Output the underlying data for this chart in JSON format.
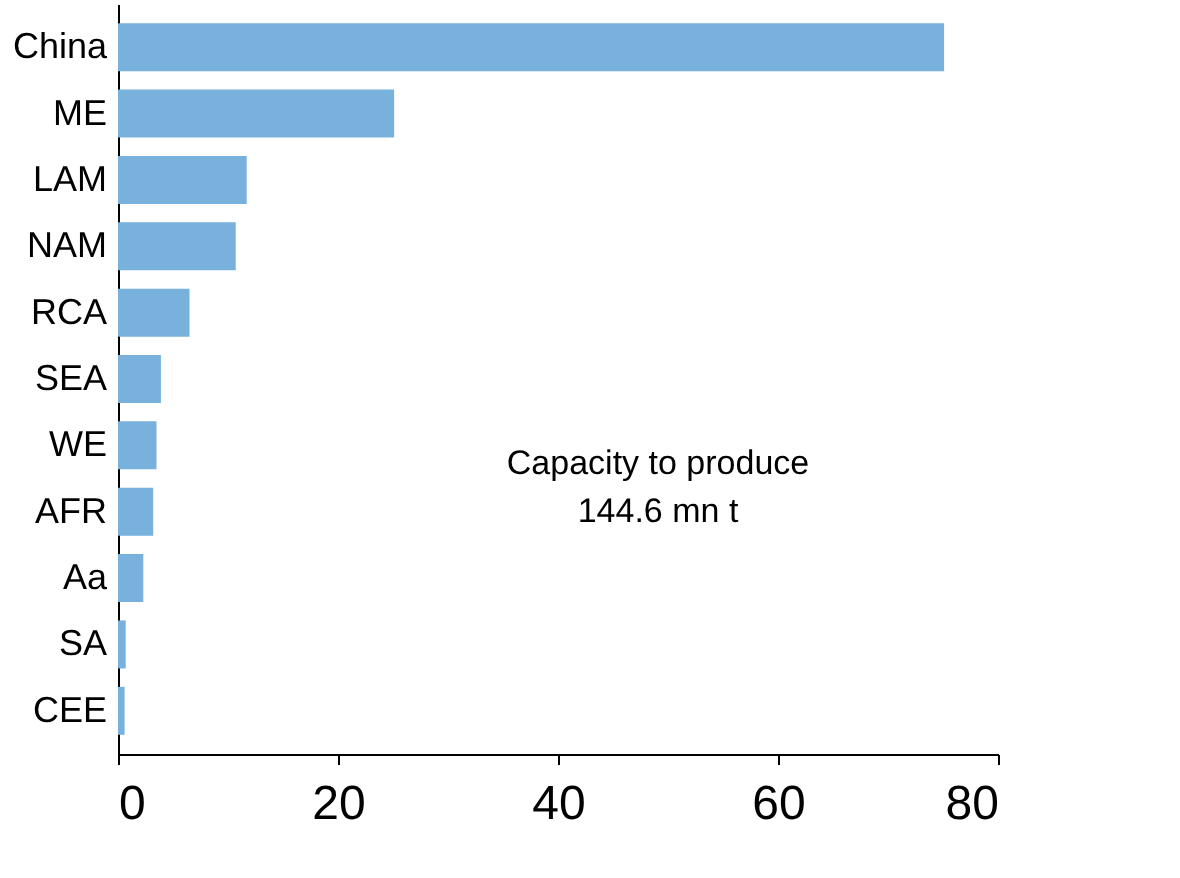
{
  "chart_data": {
    "type": "bar",
    "orientation": "horizontal",
    "categories": [
      "China",
      "ME",
      "LAM",
      "NAM",
      "RCA",
      "SEA",
      "WE",
      "AFR",
      "Aa",
      "SA",
      "CEE"
    ],
    "values": [
      75.1,
      25.1,
      11.7,
      10.7,
      6.5,
      3.9,
      3.5,
      3.2,
      2.3,
      0.7,
      0.6
    ],
    "color": "#77b1dc",
    "xlim": [
      0,
      80
    ],
    "xticks": [
      0,
      20,
      40,
      60,
      80
    ],
    "grid": false,
    "annotations": [
      "Capacity to produce\n144.6 mn t"
    ]
  }
}
